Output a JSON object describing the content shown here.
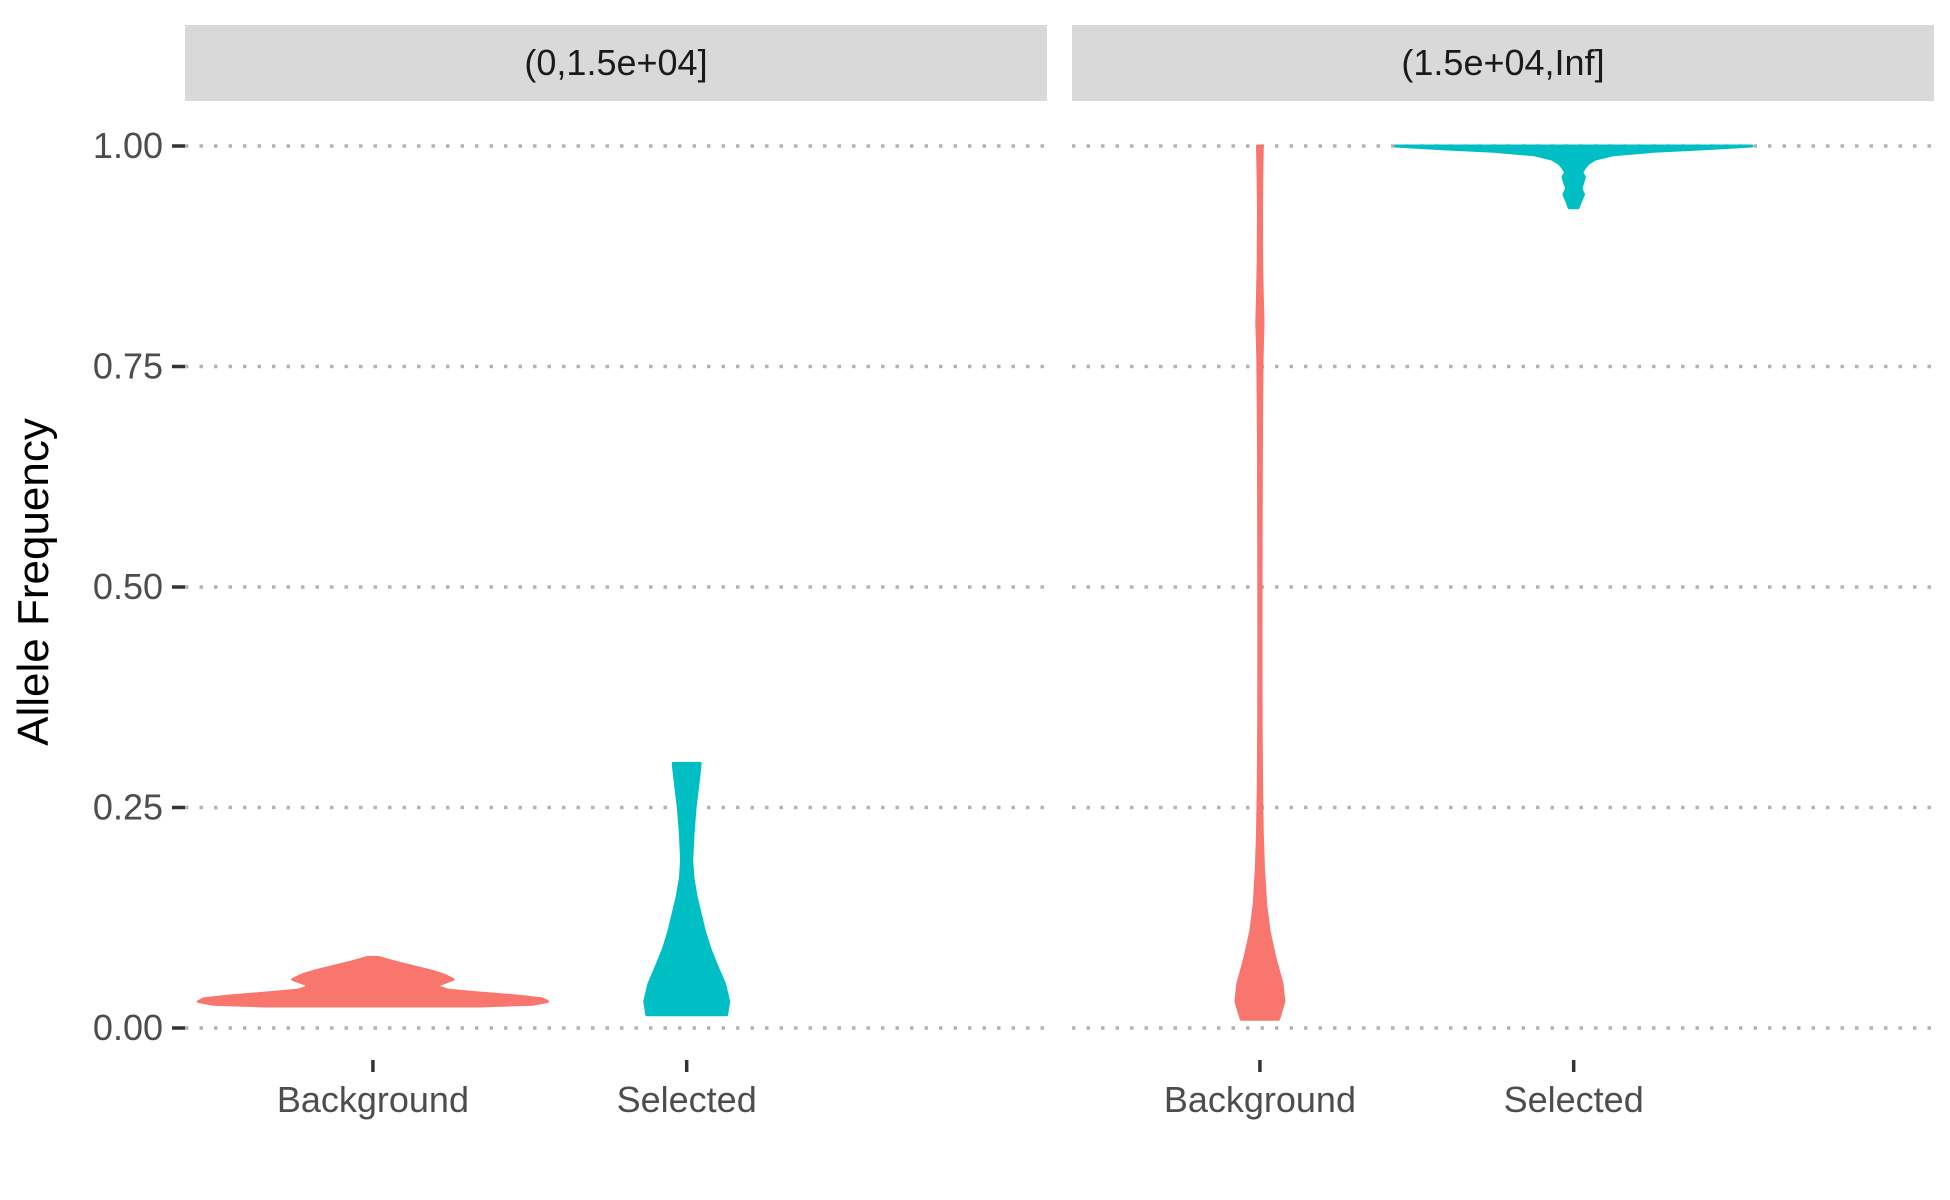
{
  "chart_data": {
    "type": "violin",
    "ylabel": "Allele Frequency",
    "xlabel": "",
    "ylim": [
      0,
      1
    ],
    "y_ticks": [
      "0.00",
      "0.25",
      "0.50",
      "0.75",
      "1.00"
    ],
    "y_tick_values": [
      0,
      0.25,
      0.5,
      0.75,
      1.0
    ],
    "grid": "horizontal dotted",
    "categories": [
      "Background",
      "Selected"
    ],
    "colors": {
      "Background": "#F8766D",
      "Selected": "#00BFC4"
    },
    "panels": [
      {
        "strip_label": "(0,1.5e+04]",
        "violins": [
          {
            "category": "Background",
            "range": [
              0.025,
              0.08
            ],
            "profile": [
              [
                0.025,
                0.6
              ],
              [
                0.027,
                0.9
              ],
              [
                0.03,
                0.98
              ],
              [
                0.033,
                0.95
              ],
              [
                0.036,
                0.82
              ],
              [
                0.04,
                0.58
              ],
              [
                0.043,
                0.42
              ],
              [
                0.047,
                0.36
              ],
              [
                0.05,
                0.38
              ],
              [
                0.055,
                0.45
              ],
              [
                0.06,
                0.4
              ],
              [
                0.065,
                0.32
              ],
              [
                0.07,
                0.22
              ],
              [
                0.075,
                0.12
              ],
              [
                0.08,
                0.03
              ]
            ]
          },
          {
            "category": "Selected",
            "range": [
              0.015,
              0.3
            ],
            "profile": [
              [
                0.015,
                0.95
              ],
              [
                0.03,
                1.0
              ],
              [
                0.05,
                0.9
              ],
              [
                0.07,
                0.72
              ],
              [
                0.09,
                0.55
              ],
              [
                0.11,
                0.42
              ],
              [
                0.13,
                0.32
              ],
              [
                0.15,
                0.22
              ],
              [
                0.17,
                0.15
              ],
              [
                0.19,
                0.12
              ],
              [
                0.22,
                0.15
              ],
              [
                0.25,
                0.2
              ],
              [
                0.27,
                0.25
              ],
              [
                0.29,
                0.3
              ],
              [
                0.3,
                0.32
              ]
            ]
          }
        ]
      },
      {
        "strip_label": "(1.5e+04,Inf]",
        "violins": [
          {
            "category": "Background",
            "range": [
              0.01,
              1.0
            ],
            "profile": [
              [
                0.01,
                0.78
              ],
              [
                0.03,
                1.0
              ],
              [
                0.05,
                0.92
              ],
              [
                0.08,
                0.62
              ],
              [
                0.11,
                0.38
              ],
              [
                0.14,
                0.24
              ],
              [
                0.18,
                0.15
              ],
              [
                0.22,
                0.1
              ],
              [
                0.27,
                0.07
              ],
              [
                0.35,
                0.05
              ],
              [
                0.45,
                0.045
              ],
              [
                0.55,
                0.05
              ],
              [
                0.65,
                0.06
              ],
              [
                0.7,
                0.07
              ],
              [
                0.76,
                0.09
              ],
              [
                0.8,
                0.13
              ],
              [
                0.83,
                0.1
              ],
              [
                0.87,
                0.07
              ],
              [
                0.93,
                0.065
              ],
              [
                0.97,
                0.08
              ],
              [
                1.0,
                0.1
              ]
            ]
          },
          {
            "category": "Selected",
            "range": [
              0.93,
              1.0
            ],
            "profile": [
              [
                0.93,
                0.025
              ],
              [
                0.938,
                0.04
              ],
              [
                0.945,
                0.055
              ],
              [
                0.952,
                0.04
              ],
              [
                0.958,
                0.05
              ],
              [
                0.965,
                0.06
              ],
              [
                0.97,
                0.045
              ],
              [
                0.975,
                0.06
              ],
              [
                0.98,
                0.08
              ],
              [
                0.985,
                0.12
              ],
              [
                0.99,
                0.22
              ],
              [
                0.994,
                0.45
              ],
              [
                0.997,
                0.75
              ],
              [
                1.0,
                1.0
              ]
            ]
          }
        ]
      }
    ]
  }
}
